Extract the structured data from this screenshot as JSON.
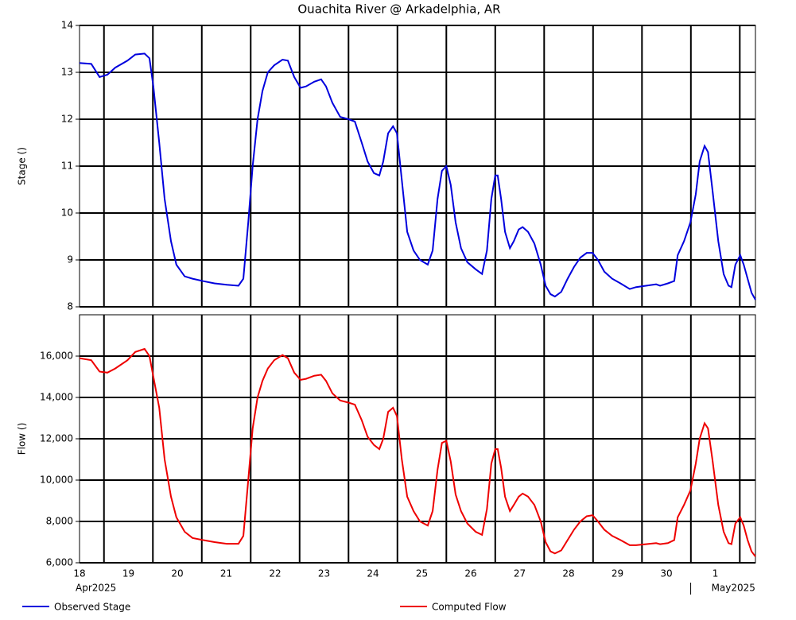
{
  "chart_data": [
    {
      "type": "line",
      "title": "Ouachita River @ Arkadelphia, AR",
      "ylabel": "Stage ()",
      "x": [
        0,
        0.24,
        0.41,
        0.57,
        0.73,
        0.98,
        1.14,
        1.33,
        1.43,
        1.51,
        1.63,
        1.74,
        1.87,
        1.98,
        2.15,
        2.31,
        2.52,
        2.76,
        3.01,
        3.25,
        3.35,
        3.45,
        3.54,
        3.64,
        3.74,
        3.85,
        3.98,
        4.15,
        4.26,
        4.39,
        4.52,
        4.63,
        4.8,
        4.94,
        5.04,
        5.17,
        5.33,
        5.5,
        5.63,
        5.77,
        5.89,
        6.02,
        6.13,
        6.21,
        6.31,
        6.41,
        6.49,
        6.59,
        6.7,
        6.83,
        6.96,
        7.12,
        7.22,
        7.32,
        7.41,
        7.5,
        7.59,
        7.69,
        7.8,
        7.93,
        8.1,
        8.23,
        8.33,
        8.42,
        8.5,
        8.55,
        8.62,
        8.7,
        8.8,
        8.88,
        8.98,
        9.06,
        9.17,
        9.3,
        9.43,
        9.53,
        9.63,
        9.72,
        9.85,
        9.98,
        10.11,
        10.24,
        10.37,
        10.49,
        10.6,
        10.73,
        10.89,
        11.06,
        11.25,
        11.38,
        11.58,
        11.79,
        11.87,
        12.03,
        12.16,
        12.23,
        12.36,
        12.49,
        12.6,
        12.68,
        12.78,
        12.85,
        12.94,
        13.06,
        13.17,
        13.27,
        13.33,
        13.41,
        13.51,
        13.58,
        13.66,
        13.74,
        13.82
      ],
      "series": [
        {
          "name": "Observed Stage",
          "color": "#0000dd",
          "values": [
            13.2,
            13.18,
            12.9,
            12.95,
            13.1,
            13.25,
            13.38,
            13.4,
            13.3,
            12.7,
            11.5,
            10.3,
            9.4,
            8.9,
            8.65,
            8.6,
            8.55,
            8.5,
            8.47,
            8.45,
            8.6,
            9.8,
            11.0,
            12.0,
            12.6,
            13.0,
            13.15,
            13.27,
            13.25,
            12.9,
            12.67,
            12.7,
            12.8,
            12.85,
            12.7,
            12.35,
            12.05,
            12.0,
            11.95,
            11.5,
            11.1,
            10.85,
            10.8,
            11.1,
            11.7,
            11.85,
            11.7,
            10.7,
            9.6,
            9.2,
            9.0,
            8.9,
            9.2,
            10.3,
            10.9,
            11.0,
            10.6,
            9.8,
            9.25,
            8.95,
            8.8,
            8.7,
            9.2,
            10.3,
            10.8,
            10.8,
            10.3,
            9.6,
            9.25,
            9.4,
            9.65,
            9.7,
            9.6,
            9.35,
            8.9,
            8.45,
            8.27,
            8.22,
            8.32,
            8.6,
            8.85,
            9.05,
            9.15,
            9.15,
            9.0,
            8.75,
            8.6,
            8.5,
            8.38,
            8.42,
            8.45,
            8.48,
            8.45,
            8.5,
            8.55,
            9.1,
            9.4,
            9.8,
            10.4,
            11.1,
            11.43,
            11.3,
            10.5,
            9.4,
            8.7,
            8.45,
            8.42,
            8.9,
            9.1,
            8.9,
            8.6,
            8.3,
            8.15
          ]
        }
      ],
      "xlim": [
        0,
        13.82
      ],
      "xgrid": [
        0.5,
        1.5,
        2.5,
        3.5,
        4.5,
        5.5,
        6.5,
        7.5,
        8.5,
        9.5,
        10.5,
        11.5,
        12.5,
        13.5
      ],
      "ylim": [
        8,
        14
      ],
      "yticks": [
        8,
        9,
        10,
        11,
        12,
        13,
        14
      ],
      "grid": true
    },
    {
      "type": "line",
      "ylabel": "Flow ()",
      "x": [
        0,
        0.24,
        0.41,
        0.57,
        0.73,
        0.98,
        1.14,
        1.33,
        1.43,
        1.51,
        1.63,
        1.74,
        1.87,
        1.98,
        2.15,
        2.31,
        2.52,
        2.76,
        3.01,
        3.25,
        3.35,
        3.45,
        3.54,
        3.64,
        3.74,
        3.85,
        3.98,
        4.15,
        4.26,
        4.39,
        4.52,
        4.63,
        4.8,
        4.94,
        5.04,
        5.17,
        5.33,
        5.5,
        5.63,
        5.77,
        5.89,
        6.02,
        6.13,
        6.21,
        6.31,
        6.41,
        6.49,
        6.59,
        6.7,
        6.83,
        6.96,
        7.12,
        7.22,
        7.32,
        7.41,
        7.5,
        7.59,
        7.69,
        7.8,
        7.93,
        8.1,
        8.23,
        8.33,
        8.42,
        8.5,
        8.55,
        8.62,
        8.7,
        8.8,
        8.88,
        8.98,
        9.06,
        9.17,
        9.3,
        9.43,
        9.53,
        9.63,
        9.72,
        9.85,
        9.98,
        10.11,
        10.24,
        10.37,
        10.49,
        10.6,
        10.73,
        10.89,
        11.06,
        11.25,
        11.38,
        11.58,
        11.79,
        11.87,
        12.03,
        12.16,
        12.23,
        12.36,
        12.49,
        12.6,
        12.68,
        12.78,
        12.85,
        12.94,
        13.06,
        13.17,
        13.27,
        13.33,
        13.41,
        13.51,
        13.58,
        13.66,
        13.74,
        13.82
      ],
      "series": [
        {
          "name": "Computed Flow",
          "color": "#ee0000",
          "values": [
            15900,
            15800,
            15250,
            15200,
            15400,
            15800,
            16200,
            16350,
            16000,
            15000,
            13500,
            11000,
            9200,
            8200,
            7500,
            7200,
            7100,
            7000,
            6920,
            6920,
            7300,
            10000,
            12500,
            14000,
            14800,
            15400,
            15800,
            16050,
            15900,
            15200,
            14850,
            14900,
            15050,
            15100,
            14800,
            14200,
            13850,
            13750,
            13650,
            12900,
            12100,
            11700,
            11500,
            12000,
            13300,
            13500,
            13100,
            11000,
            9200,
            8500,
            8000,
            7800,
            8500,
            10500,
            11800,
            11900,
            10900,
            9300,
            8500,
            7900,
            7500,
            7350,
            8600,
            10800,
            11500,
            11500,
            10600,
            9200,
            8500,
            8800,
            9200,
            9350,
            9200,
            8800,
            8000,
            7000,
            6550,
            6450,
            6600,
            7100,
            7600,
            8000,
            8250,
            8300,
            8000,
            7600,
            7300,
            7100,
            6850,
            6850,
            6900,
            6950,
            6900,
            6950,
            7100,
            8200,
            8800,
            9500,
            10800,
            12000,
            12750,
            12500,
            11000,
            8800,
            7500,
            6950,
            6900,
            7900,
            8200,
            7800,
            7100,
            6550,
            6300
          ]
        }
      ],
      "xlim": [
        0,
        13.82
      ],
      "xgrid": [
        0.5,
        1.5,
        2.5,
        3.5,
        4.5,
        5.5,
        6.5,
        7.5,
        8.5,
        9.5,
        10.5,
        11.5,
        12.5,
        13.5
      ],
      "xticks": [
        {
          "value": 0,
          "label": "18"
        },
        {
          "value": 1,
          "label": "19"
        },
        {
          "value": 2,
          "label": "20"
        },
        {
          "value": 3,
          "label": "21"
        },
        {
          "value": 4,
          "label": "22"
        },
        {
          "value": 5,
          "label": "23"
        },
        {
          "value": 6,
          "label": "24"
        },
        {
          "value": 7,
          "label": "25"
        },
        {
          "value": 8,
          "label": "26"
        },
        {
          "value": 9,
          "label": "27"
        },
        {
          "value": 10,
          "label": "28"
        },
        {
          "value": 11,
          "label": "29"
        },
        {
          "value": 12,
          "label": "30"
        },
        {
          "value": 13,
          "label": "1"
        }
      ],
      "month_labels": [
        {
          "value": 0,
          "label": "Apr2025"
        },
        {
          "value": 13,
          "label": "May2025"
        }
      ],
      "ylim": [
        6000,
        18000
      ],
      "yticks": [
        {
          "value": 6000,
          "label": "6,000"
        },
        {
          "value": 8000,
          "label": "8,000"
        },
        {
          "value": 10000,
          "label": "10,000"
        },
        {
          "value": 12000,
          "label": "12,000"
        },
        {
          "value": 14000,
          "label": "14,000"
        },
        {
          "value": 16000,
          "label": "16,000"
        }
      ],
      "grid": true
    }
  ]
}
